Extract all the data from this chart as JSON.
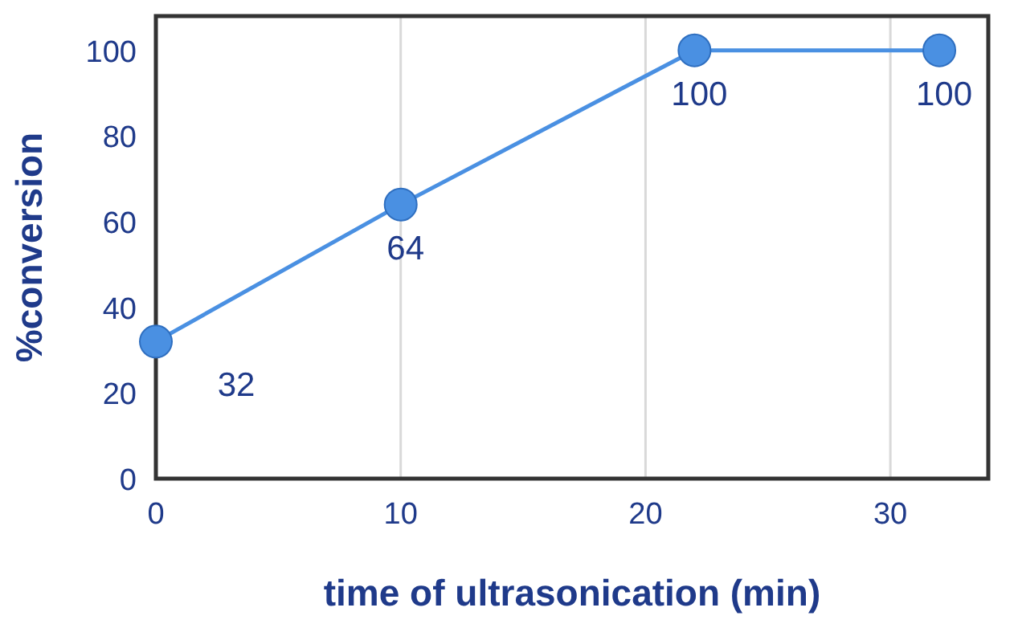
{
  "chart_data": {
    "type": "line",
    "xlabel": "time of ultrasonication (min)",
    "ylabel": "%conversion",
    "x": [
      0,
      10,
      22,
      32
    ],
    "series": [
      {
        "color": "#4a90e2",
        "values": [
          32,
          64,
          100,
          100
        ]
      }
    ],
    "xlim": [
      0,
      34
    ],
    "ylim": [
      0,
      108
    ],
    "xticks": [
      0,
      10,
      20,
      30
    ],
    "yticks": [
      0,
      20,
      40,
      60,
      80,
      100
    ],
    "grid": "x",
    "marker": "circle",
    "line_style": "solid",
    "data_labels": true
  }
}
